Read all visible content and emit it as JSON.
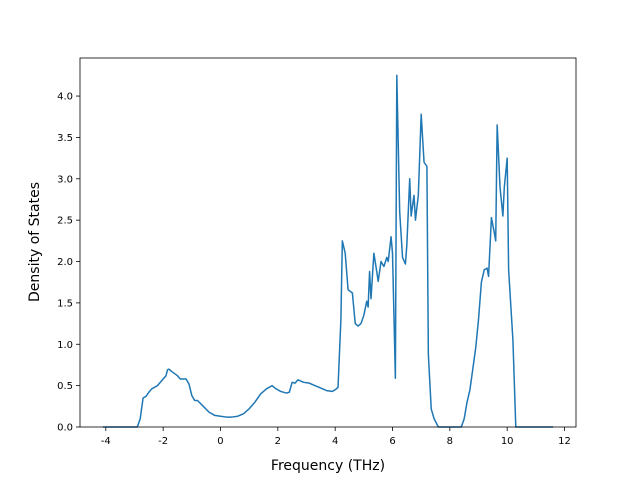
{
  "chart_data": {
    "type": "line",
    "xlabel": "Frequency (THz)",
    "ylabel": "Density of States",
    "x": [
      -4.1,
      -3.5,
      -2.9,
      -2.8,
      -2.7,
      -2.6,
      -2.5,
      -2.4,
      -2.2,
      -2.0,
      -1.9,
      -1.85,
      -1.8,
      -1.7,
      -1.5,
      -1.4,
      -1.2,
      -1.1,
      -1.0,
      -0.9,
      -0.8,
      -0.6,
      -0.4,
      -0.2,
      0,
      0.2,
      0.4,
      0.6,
      0.8,
      1.0,
      1.2,
      1.4,
      1.6,
      1.8,
      1.9,
      2.1,
      2.3,
      2.4,
      2.5,
      2.6,
      2.7,
      2.9,
      3.1,
      3.3,
      3.5,
      3.7,
      3.9,
      4.0,
      4.1,
      4.2,
      4.25,
      4.35,
      4.45,
      4.6,
      4.7,
      4.8,
      4.9,
      5.0,
      5.1,
      5.15,
      5.2,
      5.25,
      5.35,
      5.45,
      5.5,
      5.6,
      5.7,
      5.8,
      5.85,
      5.95,
      6.0,
      6.1,
      6.15,
      6.25,
      6.35,
      6.45,
      6.5,
      6.6,
      6.65,
      6.75,
      6.8,
      6.9,
      7.0,
      7.1,
      7.2,
      7.25,
      7.35,
      7.45,
      7.6,
      8.0,
      8.4,
      8.5,
      8.6,
      8.7,
      8.8,
      8.9,
      9.0,
      9.1,
      9.2,
      9.3,
      9.35,
      9.45,
      9.55,
      9.6,
      9.65,
      9.75,
      9.85,
      9.9,
      10.0,
      10.05,
      10.2,
      10.3,
      11.0,
      11.6
    ],
    "series": [
      {
        "color": "#1f77b4",
        "values": [
          0,
          0,
          0,
          0.1,
          0.35,
          0.37,
          0.42,
          0.46,
          0.5,
          0.58,
          0.62,
          0.69,
          0.7,
          0.67,
          0.62,
          0.58,
          0.58,
          0.52,
          0.38,
          0.32,
          0.32,
          0.25,
          0.18,
          0.14,
          0.13,
          0.12,
          0.12,
          0.13,
          0.16,
          0.22,
          0.3,
          0.4,
          0.46,
          0.5,
          0.47,
          0.43,
          0.41,
          0.42,
          0.54,
          0.53,
          0.57,
          0.54,
          0.53,
          0.5,
          0.47,
          0.44,
          0.43,
          0.45,
          0.48,
          1.3,
          2.25,
          2.1,
          1.66,
          1.62,
          1.25,
          1.22,
          1.25,
          1.35,
          1.52,
          1.45,
          1.88,
          1.55,
          2.1,
          1.88,
          1.76,
          2.0,
          1.94,
          2.05,
          2.0,
          2.3,
          2.1,
          0.59,
          4.25,
          2.6,
          2.05,
          1.97,
          2.2,
          3.0,
          2.55,
          2.8,
          2.5,
          2.8,
          3.78,
          3.2,
          3.15,
          0.88,
          0.22,
          0.1,
          0,
          0,
          0,
          0.1,
          0.3,
          0.45,
          0.7,
          0.95,
          1.3,
          1.75,
          1.9,
          1.92,
          1.82,
          2.53,
          2.35,
          2.25,
          3.65,
          2.9,
          2.55,
          2.9,
          3.25,
          1.9,
          1.05,
          0,
          0,
          0
        ]
      }
    ],
    "xlim": [
      -4.9,
      12.4
    ],
    "ylim": [
      0,
      4.46
    ],
    "xticks": [
      -4,
      -2,
      0,
      2,
      4,
      6,
      8,
      10,
      12
    ],
    "yticks": [
      {
        "value": 0,
        "label": "0.0"
      },
      {
        "value": 0.5,
        "label": "0.5"
      },
      {
        "value": 1,
        "label": "1.0"
      },
      {
        "value": 1.5,
        "label": "1.5"
      },
      {
        "value": 2,
        "label": "2.0"
      },
      {
        "value": 2.5,
        "label": "2.5"
      },
      {
        "value": 3,
        "label": "3.0"
      },
      {
        "value": 3.5,
        "label": "3.5"
      },
      {
        "value": 4,
        "label": "4.0"
      }
    ],
    "grid": false
  }
}
